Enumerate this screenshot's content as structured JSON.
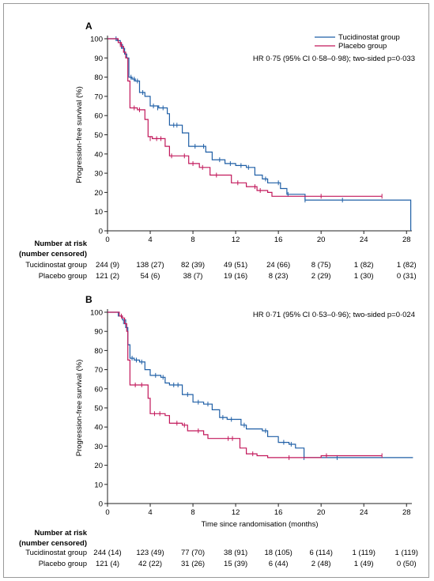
{
  "chart_data": [
    {
      "type": "line",
      "panel_label": "A",
      "ylabel": "Progression-free survival (%)",
      "xlabel": "",
      "xlim": [
        0,
        28.5
      ],
      "ylim": [
        0,
        100
      ],
      "xticks": [
        0,
        4,
        8,
        12,
        16,
        20,
        24,
        28
      ],
      "yticks": [
        0,
        10,
        20,
        30,
        40,
        50,
        60,
        70,
        80,
        90,
        100
      ],
      "annotation": "HR 0·75 (95% CI 0·58–0·98); two-sided p=0·033",
      "legend_position": "top-right",
      "series": [
        {
          "name": "Tucidinostat group",
          "color": "#1f5fa6",
          "steps": [
            [
              0,
              100
            ],
            [
              0.6,
              100
            ],
            [
              0.9,
              99
            ],
            [
              1.2,
              97
            ],
            [
              1.4,
              95
            ],
            [
              1.6,
              92
            ],
            [
              1.8,
              90
            ],
            [
              2.0,
              80
            ],
            [
              2.3,
              79
            ],
            [
              2.6,
              78
            ],
            [
              3.0,
              72
            ],
            [
              3.5,
              70
            ],
            [
              4.0,
              65
            ],
            [
              4.8,
              64
            ],
            [
              5.6,
              61
            ],
            [
              5.8,
              55
            ],
            [
              7.0,
              51
            ],
            [
              7.6,
              44
            ],
            [
              9.2,
              41
            ],
            [
              9.8,
              37
            ],
            [
              11.0,
              35
            ],
            [
              12.0,
              34
            ],
            [
              13.0,
              33
            ],
            [
              13.8,
              29
            ],
            [
              14.5,
              27
            ],
            [
              15.0,
              25
            ],
            [
              16.2,
              22
            ],
            [
              16.8,
              19
            ],
            [
              18.5,
              16
            ],
            [
              21.0,
              16
            ],
            [
              26.0,
              16
            ],
            [
              28.4,
              16
            ],
            [
              28.4,
              0
            ]
          ],
          "censor_marks": [
            [
              0.8,
              100
            ],
            [
              1.3,
              96
            ],
            [
              2.2,
              80
            ],
            [
              2.5,
              79
            ],
            [
              2.8,
              78
            ],
            [
              3.3,
              72
            ],
            [
              4.3,
              65
            ],
            [
              4.7,
              64
            ],
            [
              5.2,
              64
            ],
            [
              6.2,
              55
            ],
            [
              6.5,
              55
            ],
            [
              8.2,
              44
            ],
            [
              9.0,
              44
            ],
            [
              10.5,
              37
            ],
            [
              11.5,
              35
            ],
            [
              12.5,
              34
            ],
            [
              13.2,
              33
            ],
            [
              14.8,
              27
            ],
            [
              16.0,
              25
            ],
            [
              16.9,
              19
            ],
            [
              18.5,
              16
            ],
            [
              22.0,
              16
            ]
          ]
        },
        {
          "name": "Placebo group",
          "color": "#c2185b",
          "steps": [
            [
              0,
              100
            ],
            [
              0.7,
              100
            ],
            [
              1.0,
              98
            ],
            [
              1.3,
              96
            ],
            [
              1.5,
              93
            ],
            [
              1.7,
              90
            ],
            [
              1.9,
              78
            ],
            [
              2.1,
              64
            ],
            [
              2.8,
              63
            ],
            [
              3.5,
              58
            ],
            [
              3.8,
              49
            ],
            [
              4.2,
              48
            ],
            [
              5.4,
              44
            ],
            [
              5.8,
              39
            ],
            [
              7.6,
              35
            ],
            [
              8.6,
              33
            ],
            [
              9.6,
              29
            ],
            [
              11.0,
              29
            ],
            [
              11.6,
              25
            ],
            [
              13.0,
              23
            ],
            [
              14.0,
              21
            ],
            [
              15.0,
              20
            ],
            [
              15.4,
              18
            ],
            [
              18.5,
              18
            ],
            [
              25.7,
              18
            ]
          ],
          "censor_marks": [
            [
              1.2,
              97
            ],
            [
              2.5,
              64
            ],
            [
              3.0,
              63
            ],
            [
              4.0,
              48
            ],
            [
              4.6,
              48
            ],
            [
              5.0,
              48
            ],
            [
              6.0,
              39
            ],
            [
              7.2,
              39
            ],
            [
              8.0,
              35
            ],
            [
              8.9,
              33
            ],
            [
              10.2,
              29
            ],
            [
              12.2,
              25
            ],
            [
              13.8,
              23
            ],
            [
              14.3,
              21
            ],
            [
              20.0,
              18
            ],
            [
              25.7,
              18
            ]
          ]
        }
      ],
      "risk_table": {
        "title_line1": "Number at risk",
        "title_line2": "(number censored)",
        "times": [
          0,
          4,
          8,
          12,
          16,
          20,
          24,
          28
        ],
        "rows": [
          {
            "label": "Tucidinostat group",
            "values": [
              "244 (9)",
              "138 (27)",
              "82 (39)",
              "49 (51)",
              "24 (66)",
              "8 (75)",
              "1 (82)",
              "1 (82)"
            ]
          },
          {
            "label": "Placebo group",
            "values": [
              "121 (2)",
              "54 (6)",
              "38 (7)",
              "19 (16)",
              "8 (23)",
              "2 (29)",
              "1 (30)",
              "0 (31)"
            ]
          }
        ]
      }
    },
    {
      "type": "line",
      "panel_label": "B",
      "ylabel": "Progression-free survival (%)",
      "xlabel": "Time since randomisation (months)",
      "xlim": [
        0,
        28.5
      ],
      "ylim": [
        0,
        100
      ],
      "xticks": [
        0,
        4,
        8,
        12,
        16,
        20,
        24,
        28
      ],
      "yticks": [
        0,
        10,
        20,
        30,
        40,
        50,
        60,
        70,
        80,
        90,
        100
      ],
      "annotation": "HR 0·71 (95% CI 0·53–0·96); two-sided p=0·024",
      "series": [
        {
          "name": "Tucidinostat group",
          "color": "#1f5fa6",
          "steps": [
            [
              0,
              100
            ],
            [
              0.8,
              100
            ],
            [
              1.1,
              98
            ],
            [
              1.4,
              96
            ],
            [
              1.7,
              92
            ],
            [
              1.9,
              83
            ],
            [
              2.1,
              76
            ],
            [
              2.5,
              75
            ],
            [
              3.0,
              74
            ],
            [
              3.5,
              70
            ],
            [
              4.0,
              67
            ],
            [
              5.0,
              66
            ],
            [
              5.4,
              63
            ],
            [
              5.8,
              62
            ],
            [
              7.0,
              57
            ],
            [
              8.0,
              53
            ],
            [
              9.0,
              52
            ],
            [
              9.8,
              49
            ],
            [
              10.5,
              45
            ],
            [
              11.2,
              44
            ],
            [
              12.5,
              41
            ],
            [
              13.0,
              39
            ],
            [
              14.5,
              38
            ],
            [
              15.0,
              35
            ],
            [
              16.0,
              32
            ],
            [
              17.0,
              31
            ],
            [
              17.6,
              29
            ],
            [
              18.4,
              24
            ],
            [
              21.0,
              24
            ],
            [
              24.0,
              24
            ],
            [
              28.6,
              24
            ]
          ],
          "censor_marks": [
            [
              1.0,
              99
            ],
            [
              1.5,
              95
            ],
            [
              2.3,
              76
            ],
            [
              2.7,
              75
            ],
            [
              3.2,
              74
            ],
            [
              4.5,
              67
            ],
            [
              5.2,
              66
            ],
            [
              6.2,
              62
            ],
            [
              6.6,
              62
            ],
            [
              7.5,
              57
            ],
            [
              8.5,
              53
            ],
            [
              9.4,
              52
            ],
            [
              10.8,
              45
            ],
            [
              11.6,
              44
            ],
            [
              12.8,
              41
            ],
            [
              14.8,
              38
            ],
            [
              16.5,
              32
            ],
            [
              17.2,
              31
            ],
            [
              18.4,
              24
            ],
            [
              21.5,
              24
            ]
          ]
        },
        {
          "name": "Placebo group",
          "color": "#c2185b",
          "steps": [
            [
              0,
              100
            ],
            [
              0.8,
              100
            ],
            [
              1.1,
              98
            ],
            [
              1.4,
              97
            ],
            [
              1.6,
              94
            ],
            [
              1.8,
              90
            ],
            [
              1.9,
              75
            ],
            [
              2.1,
              62
            ],
            [
              3.8,
              55
            ],
            [
              4.0,
              47
            ],
            [
              5.4,
              46
            ],
            [
              5.8,
              42
            ],
            [
              7.0,
              41
            ],
            [
              7.5,
              38
            ],
            [
              9.0,
              36
            ],
            [
              9.4,
              34
            ],
            [
              11.2,
              34
            ],
            [
              12.4,
              29
            ],
            [
              13.0,
              26
            ],
            [
              14.0,
              25
            ],
            [
              15.0,
              24
            ],
            [
              20.0,
              25
            ],
            [
              25.7,
              25
            ]
          ],
          "censor_marks": [
            [
              1.3,
              98
            ],
            [
              2.6,
              62
            ],
            [
              3.2,
              62
            ],
            [
              4.4,
              47
            ],
            [
              4.9,
              47
            ],
            [
              6.5,
              42
            ],
            [
              7.2,
              41
            ],
            [
              8.5,
              38
            ],
            [
              11.3,
              34
            ],
            [
              11.7,
              34
            ],
            [
              13.6,
              26
            ],
            [
              17.0,
              24
            ],
            [
              20.5,
              25
            ],
            [
              25.7,
              25
            ]
          ]
        }
      ],
      "risk_table": {
        "title_line1": "Number at risk",
        "title_line2": "(number censored)",
        "times": [
          0,
          4,
          8,
          12,
          16,
          20,
          24,
          28
        ],
        "rows": [
          {
            "label": "Tucidinostat group",
            "values": [
              "244 (14)",
              "123 (49)",
              "77 (70)",
              "38 (91)",
              "18 (105)",
              "6 (114)",
              "1 (119)",
              "1 (119)"
            ]
          },
          {
            "label": "Placebo group",
            "values": [
              "121 (4)",
              "42 (22)",
              "31 (26)",
              "15 (39)",
              "6 (44)",
              "2 (48)",
              "1 (49)",
              "0 (50)"
            ]
          }
        ]
      }
    }
  ]
}
